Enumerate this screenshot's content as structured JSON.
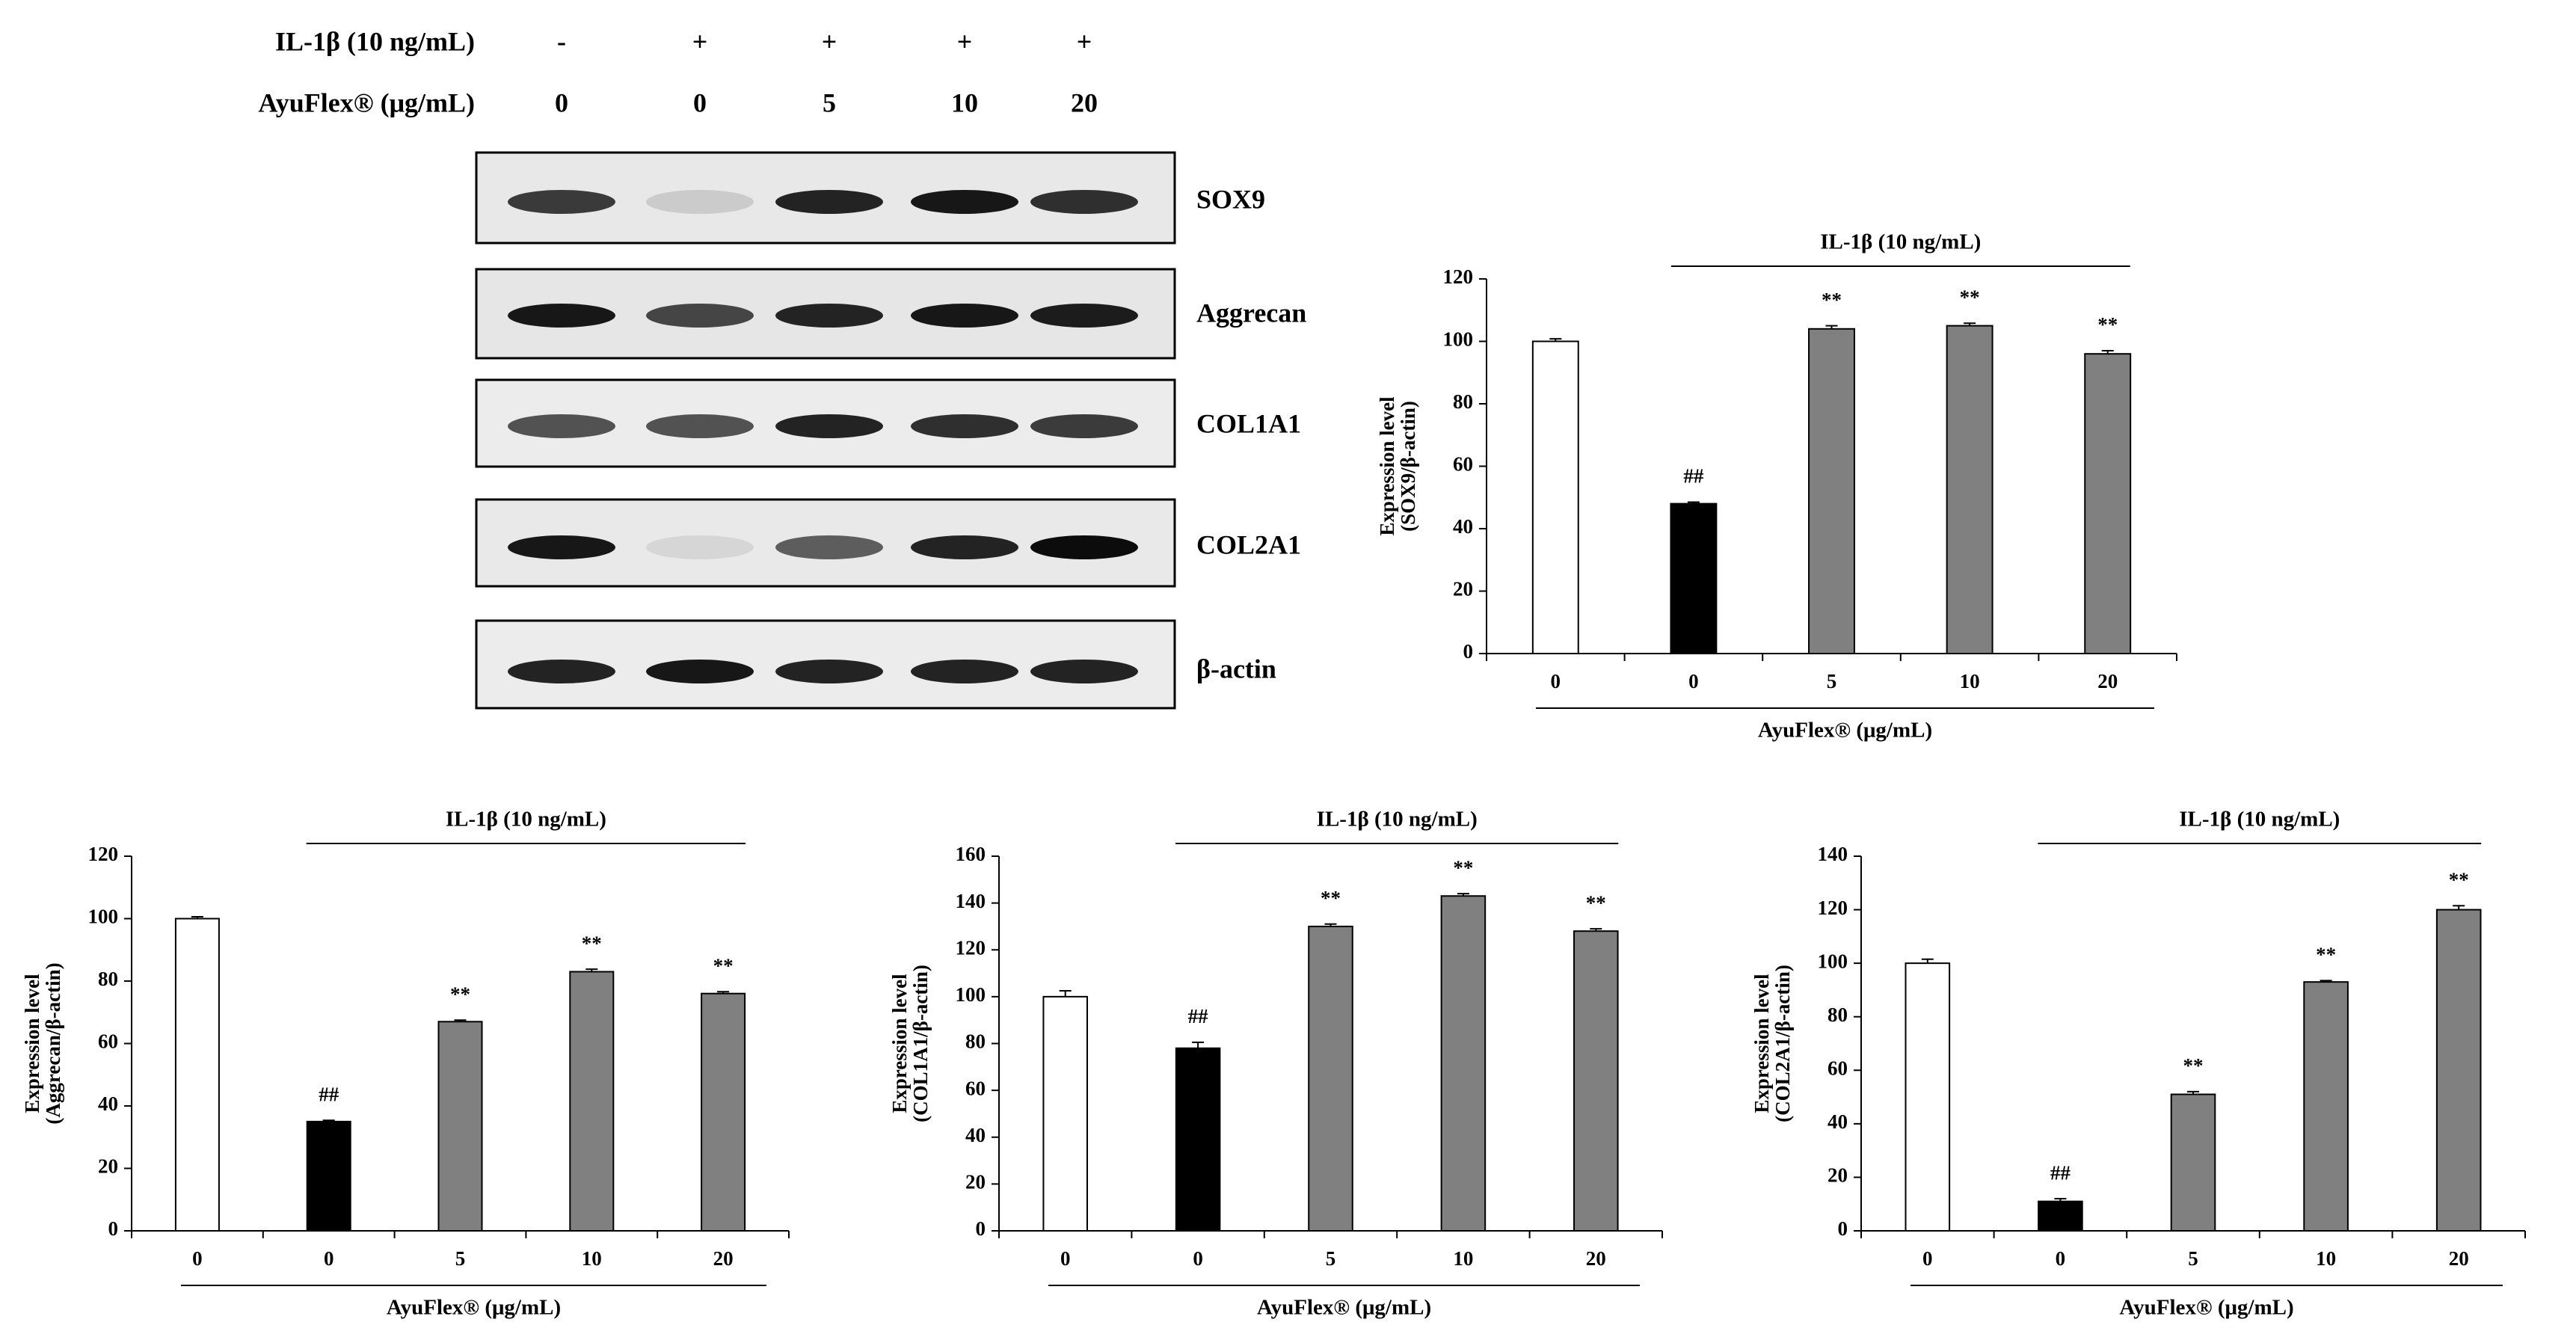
{
  "blot": {
    "rows": [
      {
        "label": "IL-1β (10 ng/mL)",
        "values": [
          "-",
          "+",
          "+",
          "+",
          "+"
        ]
      },
      {
        "label": "AyuFlex® (μg/mL)",
        "values": [
          "0",
          "0",
          "5",
          "10",
          "20"
        ]
      }
    ],
    "proteins": [
      "SOX9",
      "Aggrecan",
      "COL1A1",
      "COL2A1",
      "β-actin"
    ]
  },
  "chart_data": [
    {
      "type": "bar",
      "ylabel": [
        "Expression level",
        "(SOX9/β-actin)"
      ],
      "xlabel": "AyuFlex® (μg/mL)",
      "annotation": "IL-1β (10 ng/mL)",
      "categories": [
        "0",
        "0",
        "5",
        "10",
        "20"
      ],
      "values": [
        100,
        48,
        104,
        105,
        96
      ],
      "errors": [
        0.8,
        0.5,
        1,
        0.8,
        1
      ],
      "significance": [
        null,
        "##",
        "**",
        "**",
        "**"
      ],
      "colors": [
        "#ffffff",
        "#000000",
        "#808080",
        "#808080",
        "#808080"
      ],
      "ylim": [
        0,
        120
      ],
      "yticks": [
        0,
        20,
        40,
        60,
        80,
        100,
        120
      ]
    },
    {
      "type": "bar",
      "ylabel": [
        "Expression level",
        "(Aggrecan/β-actin)"
      ],
      "xlabel": "AyuFlex® (μg/mL)",
      "annotation": "IL-1β (10 ng/mL)",
      "categories": [
        "0",
        "0",
        "5",
        "10",
        "20"
      ],
      "values": [
        100,
        35,
        67,
        83,
        76
      ],
      "errors": [
        0.6,
        0.4,
        0.5,
        0.8,
        0.6
      ],
      "significance": [
        null,
        "##",
        "**",
        "**",
        "**"
      ],
      "colors": [
        "#ffffff",
        "#000000",
        "#808080",
        "#808080",
        "#808080"
      ],
      "ylim": [
        0,
        120
      ],
      "yticks": [
        0,
        20,
        40,
        60,
        80,
        100,
        120
      ]
    },
    {
      "type": "bar",
      "ylabel": [
        "Expression level",
        "(COL1A1/β-actin)"
      ],
      "xlabel": "AyuFlex® (μg/mL)",
      "annotation": "IL-1β (10 ng/mL)",
      "categories": [
        "0",
        "0",
        "5",
        "10",
        "20"
      ],
      "values": [
        100,
        78,
        130,
        143,
        128
      ],
      "errors": [
        2.5,
        2.5,
        1,
        1,
        1
      ],
      "significance": [
        null,
        "##",
        "**",
        "**",
        "**"
      ],
      "colors": [
        "#ffffff",
        "#000000",
        "#808080",
        "#808080",
        "#808080"
      ],
      "ylim": [
        0,
        160
      ],
      "yticks": [
        0,
        20,
        40,
        60,
        80,
        100,
        120,
        140,
        160
      ]
    },
    {
      "type": "bar",
      "ylabel": [
        "Expression level",
        "(COL2A1/β-actin)"
      ],
      "xlabel": "AyuFlex® (μg/mL)",
      "annotation": "IL-1β (10 ng/mL)",
      "categories": [
        "0",
        "0",
        "5",
        "10",
        "20"
      ],
      "values": [
        100,
        11,
        51,
        93,
        120
      ],
      "errors": [
        1.5,
        1,
        1,
        0.5,
        1.5
      ],
      "significance": [
        null,
        "##",
        "**",
        "**",
        "**"
      ],
      "colors": [
        "#ffffff",
        "#000000",
        "#808080",
        "#808080",
        "#808080"
      ],
      "ylim": [
        0,
        140
      ],
      "yticks": [
        0,
        20,
        40,
        60,
        80,
        100,
        120,
        140
      ]
    }
  ]
}
